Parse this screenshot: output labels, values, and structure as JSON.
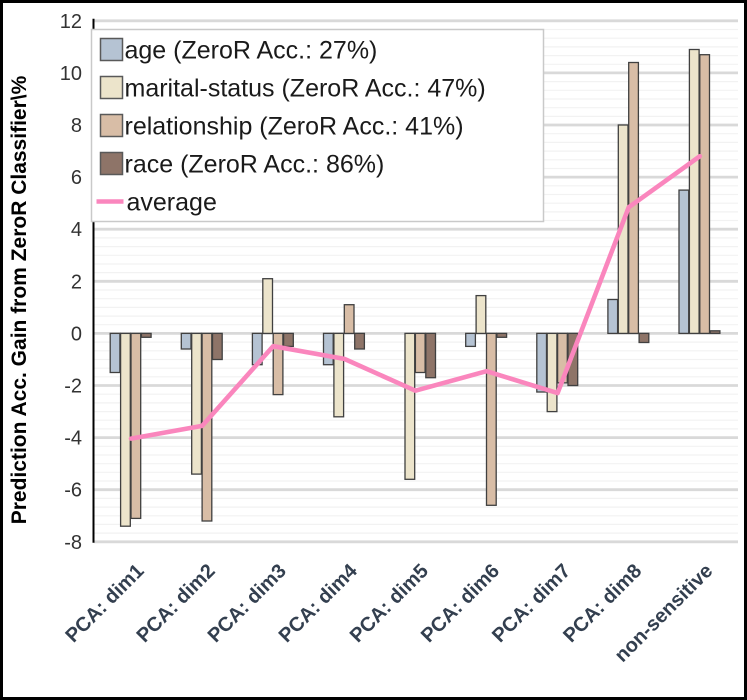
{
  "chart_data": {
    "type": "bar",
    "title": "",
    "xlabel": "",
    "ylabel": "Prediction Acc. Gain from ZeroR Classifier\\%",
    "ylim": [
      -8,
      12
    ],
    "y_major_step": 2,
    "y_minor_step": 0.3333,
    "grid": "major+minor horizontal",
    "legend_position": "top-left inside plot",
    "y_tick_labels": [
      "-8",
      "-6",
      "-4",
      "-2",
      "0",
      "2",
      "4",
      "6",
      "8",
      "10",
      "12"
    ],
    "categories": [
      "PCA: dim1",
      "PCA: dim2",
      "PCA: dim3",
      "PCA: dim4",
      "PCA: dim5",
      "PCA: dim6",
      "PCA: dim7",
      "PCA: dim8",
      "non-sensitive"
    ],
    "series": [
      {
        "key": "age",
        "name": "age (ZeroR Acc.: 27%)",
        "color": "#b5c3d3",
        "border": "#404040",
        "values": [
          -1.5,
          -0.6,
          -1.2,
          -1.2,
          0,
          -0.5,
          -2.25,
          1.3,
          5.5
        ]
      },
      {
        "key": "marital-status",
        "name": "marital-status (ZeroR Acc.: 47%)",
        "color": "#ece4cb",
        "border": "#404040",
        "values": [
          -7.4,
          -5.4,
          2.1,
          -3.2,
          -5.6,
          1.45,
          -3.0,
          8.0,
          10.9
        ]
      },
      {
        "key": "relationship",
        "name": "relationship (ZeroR Acc.: 41%)",
        "color": "#d8bda6",
        "border": "#404040",
        "values": [
          -7.1,
          -7.2,
          -2.35,
          1.1,
          -1.5,
          -6.6,
          -1.9,
          10.4,
          10.7
        ]
      },
      {
        "key": "race",
        "name": "race (ZeroR Acc.: 86%)",
        "color": "#8e7468",
        "border": "#404040",
        "values": [
          -0.15,
          -1.0,
          -0.5,
          -0.6,
          -1.7,
          -0.15,
          -2.0,
          -0.35,
          0.1
        ]
      }
    ],
    "line_series": {
      "key": "average",
      "name": "average",
      "color": "#fa86bd",
      "values": [
        -4.04,
        -3.55,
        -0.49,
        -0.98,
        -2.2,
        -1.45,
        -2.29,
        4.84,
        6.8
      ]
    },
    "colors": {
      "x_label": "#333f4f",
      "tick_label": "#333333",
      "axis_title": "#000000",
      "outer_border": "#000000"
    }
  }
}
